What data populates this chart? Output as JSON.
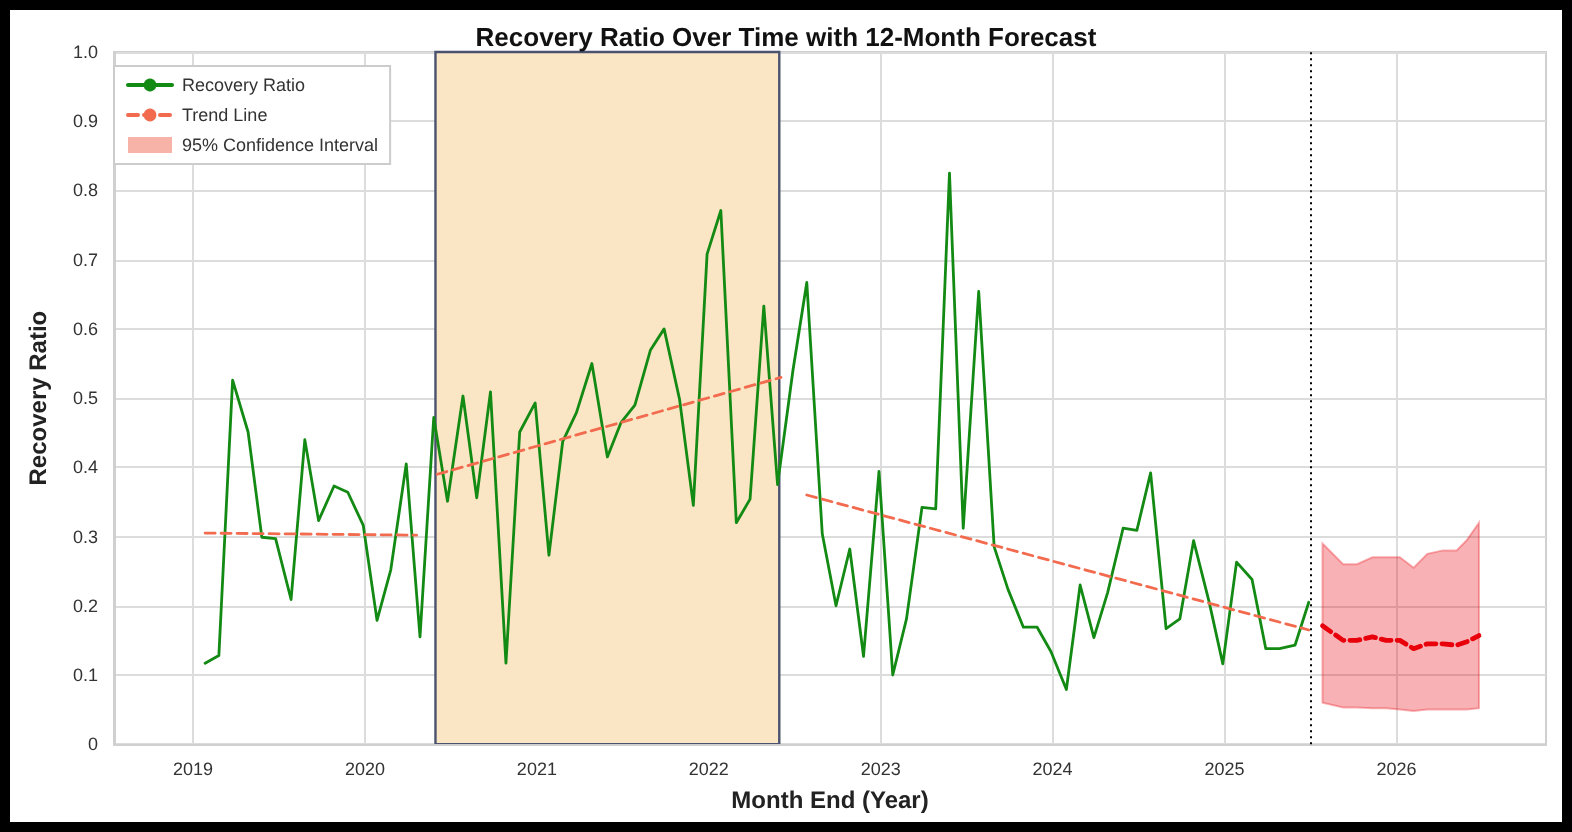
{
  "chart_data": {
    "type": "line",
    "title": "Recovery Ratio Over Time with 12-Month Forecast",
    "xlabel": "Month End (Year)",
    "ylabel": "Recovery Ratio",
    "xlim": [
      2018.54,
      2026.87
    ],
    "xticks": [
      2019,
      2020,
      2021,
      2022,
      2023,
      2024,
      2025,
      2026
    ],
    "ylim": [
      0,
      1
    ],
    "yticks": [
      0,
      0.1,
      0.2,
      0.3,
      0.4,
      0.5,
      0.6,
      0.7,
      0.8,
      0.9,
      {
        "value": 1,
        "label": "1.0"
      }
    ],
    "grid": true,
    "legend": "top left",
    "marker": "none",
    "bands": [
      {
        "axis": "x",
        "from": 2020.41,
        "to": 2022.41,
        "color": "#fae6c4"
      }
    ],
    "ref_lines": [
      {
        "axis": "x",
        "value": 2025.5,
        "color": "#000000",
        "line_style": "dotted"
      }
    ],
    "series": [
      {
        "name": "Recovery Ratio",
        "color": "#138a13",
        "line_style": "solid",
        "x": [
          2019.07,
          2019.15,
          2019.23,
          2019.32,
          2019.4,
          2019.48,
          2019.57,
          2019.65,
          2019.73,
          2019.82,
          2019.9,
          2019.99,
          2020.07,
          2020.15,
          2020.24,
          2020.32,
          2020.4,
          2020.48,
          2020.57,
          2020.65,
          2020.73,
          2020.82,
          2020.9,
          2020.99,
          2021.07,
          2021.15,
          2021.23,
          2021.32,
          2021.41,
          2021.49,
          2021.57,
          2021.66,
          2021.74,
          2021.83,
          2021.91,
          2021.99,
          2022.07,
          2022.16,
          2022.24,
          2022.32,
          2022.4,
          2022.49,
          2022.57,
          2022.66,
          2022.74,
          2022.82,
          2022.9,
          2022.99,
          2023.07,
          2023.15,
          2023.24,
          2023.32,
          2023.4,
          2023.48,
          2023.57,
          2023.66,
          2023.74,
          2023.83,
          2023.91,
          2023.99,
          2024.08,
          2024.16,
          2024.24,
          2024.32,
          2024.41,
          2024.49,
          2024.57,
          2024.66,
          2024.74,
          2024.82,
          2024.91,
          2024.99,
          2025.07,
          2025.16,
          2025.24,
          2025.32,
          2025.41,
          2025.49
        ],
        "values": [
          0.117,
          0.128,
          0.526,
          0.451,
          0.299,
          0.297,
          0.209,
          0.44,
          0.323,
          0.373,
          0.364,
          0.316,
          0.179,
          0.252,
          0.405,
          0.155,
          0.472,
          0.351,
          0.503,
          0.356,
          0.509,
          0.117,
          0.451,
          0.493,
          0.273,
          0.437,
          0.479,
          0.55,
          0.415,
          0.465,
          0.49,
          0.569,
          0.6,
          0.498,
          0.345,
          0.708,
          0.771,
          0.32,
          0.354,
          0.633,
          0.375,
          0.541,
          0.667,
          0.304,
          0.2,
          0.282,
          0.127,
          0.394,
          0.1,
          0.181,
          0.342,
          0.34,
          0.825,
          0.312,
          0.654,
          0.285,
          0.224,
          0.169,
          0.169,
          0.134,
          0.079,
          0.23,
          0.154,
          0.219,
          0.312,
          0.309,
          0.392,
          0.167,
          0.181,
          0.294,
          0.206,
          0.116,
          0.263,
          0.238,
          0.138,
          0.138,
          0.143,
          0.205
        ]
      },
      {
        "name": "Trend Line",
        "color": "#f26b4f",
        "line_style": "dashed",
        "x": [
          2019.07,
          2020.3,
          2020.36,
          2020.42,
          2022.42,
          2022.5,
          2022.57,
          2025.49
        ],
        "values": [
          0.305,
          0.302,
          null,
          0.39,
          0.53,
          null,
          0.36,
          0.165
        ]
      },
      {
        "color": "#e8000b",
        "line_style": "dashed",
        "x": [
          2025.57,
          2025.69,
          2025.77,
          2025.86,
          2025.94,
          2026.02,
          2026.1,
          2026.18,
          2026.27,
          2026.35,
          2026.41,
          2026.48
        ],
        "values": [
          0.171,
          0.15,
          0.15,
          0.155,
          0.15,
          0.15,
          0.138,
          0.145,
          0.145,
          0.143,
          0.148,
          0.157
        ],
        "upper": [
          0.29,
          0.26,
          0.26,
          0.27,
          0.27,
          0.27,
          0.255,
          0.275,
          0.28,
          0.28,
          0.295,
          0.32
        ],
        "lower": [
          0.06,
          0.053,
          0.053,
          0.052,
          0.052,
          0.05,
          0.048,
          0.05,
          0.05,
          0.05,
          0.05,
          0.052
        ]
      },
      {
        "name": "95% Confidence Interval",
        "type": "area",
        "color": "#f8b3a8"
      }
    ]
  }
}
